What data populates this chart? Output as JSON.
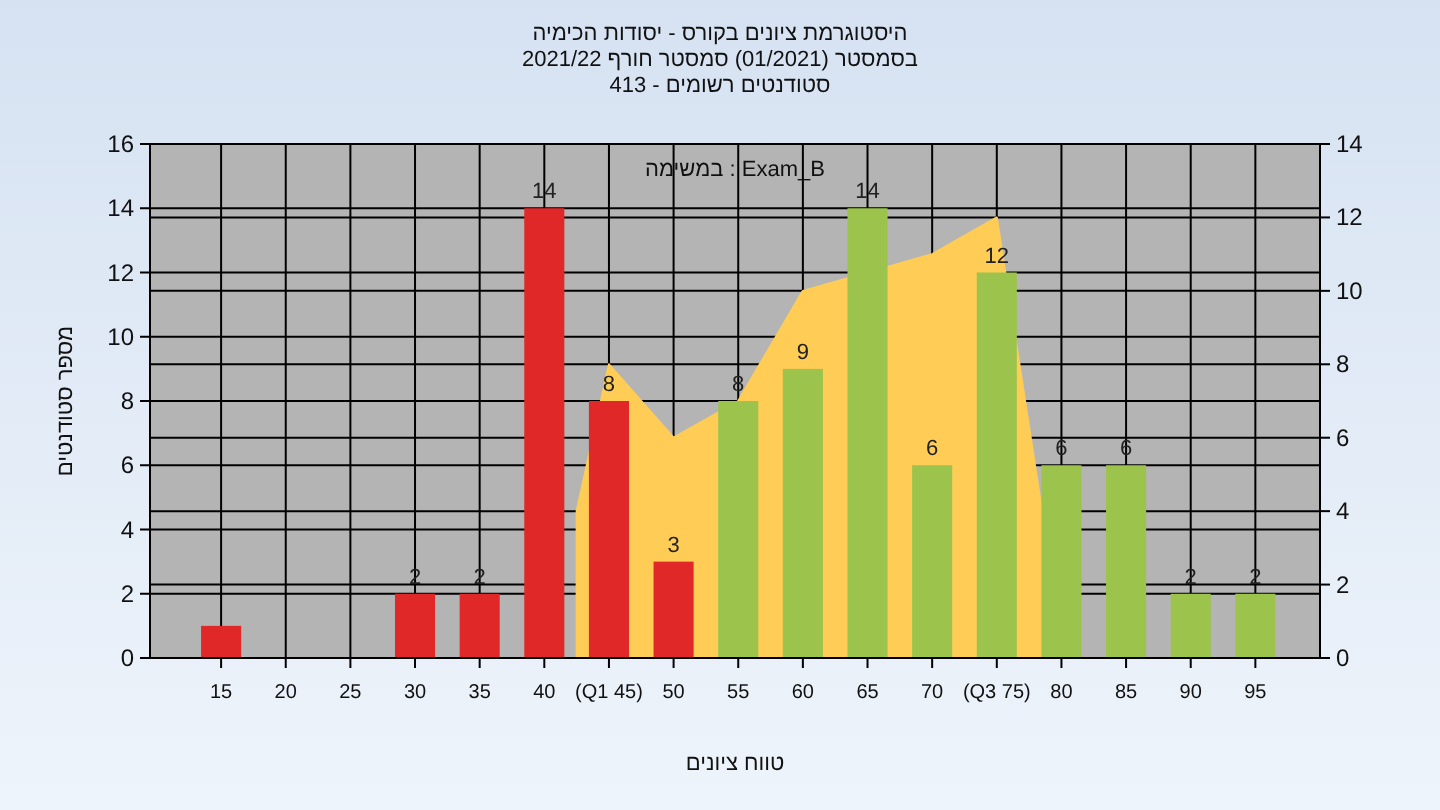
{
  "chart_data": {
    "type": "bar",
    "title": "היסטוגרמת ציונים בקורס - יסודות הכימיה",
    "subtitle": "בסמסטר (01/2021) סמסטר חורף 2021/22\nסטודנטים רשומים - 413",
    "xlabel": "טווח ציונים",
    "ylabel": "מספר סטודנטים",
    "annotations": [
      "במשימה : Exam_B"
    ],
    "xlim": [
      9.5,
      100
    ],
    "xticks": [
      15,
      20,
      25,
      30,
      35,
      40,
      {
        "value": 45,
        "label": "(Q1 45)"
      },
      50,
      55,
      60,
      65,
      70,
      {
        "value": 75,
        "label": "(Q3 75)"
      },
      80,
      85,
      90,
      95
    ],
    "ylim": [
      0,
      16
    ],
    "yticks": [
      0,
      2,
      4,
      6,
      8,
      10,
      12,
      14,
      16
    ],
    "y2lim": [
      0,
      14
    ],
    "y2ticks": [
      0,
      2,
      4,
      6,
      8,
      10,
      12,
      14
    ],
    "grid": true,
    "series": [
      {
        "type": "area",
        "axis": "y2",
        "color": "#ffcc55",
        "x": [
          42.5,
          45,
          50,
          55,
          60,
          65,
          70,
          75,
          78.5
        ],
        "values": [
          4,
          8,
          6,
          7,
          10,
          null,
          11,
          12,
          4
        ]
      },
      {
        "x": [
          15,
          20,
          25,
          30,
          35,
          40,
          45,
          50,
          55,
          60,
          65,
          70,
          75,
          80,
          85,
          90,
          95
        ],
        "values": [
          1,
          0,
          0,
          2,
          2,
          14,
          8,
          3,
          8,
          9,
          14,
          6,
          12,
          6,
          6,
          2,
          2
        ],
        "colors": [
          "#e02828",
          "#e02828",
          "#e02828",
          "#e02828",
          "#e02828",
          "#e02828",
          "#e02828",
          "#e02828",
          "#9cc44c",
          "#9cc44c",
          "#9cc44c",
          "#9cc44c",
          "#9cc44c",
          "#9cc44c",
          "#9cc44c",
          "#9cc44c",
          "#9cc44c"
        ],
        "value_labels": [
          null,
          null,
          null,
          "2",
          "2",
          "14",
          "8",
          "3",
          "8",
          "9",
          "14",
          "6",
          "12",
          "6",
          "6",
          "2",
          "2"
        ]
      }
    ]
  }
}
